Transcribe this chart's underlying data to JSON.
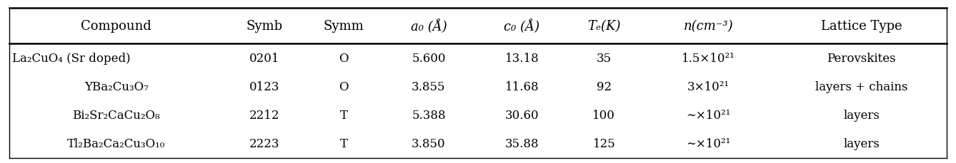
{
  "headers": [
    "Compound",
    "Symb",
    "Symm",
    "a₀ (Å)",
    "c₀ (Å)",
    "Tₑ(K)",
    "n(cm⁻³)",
    "Lattice Type"
  ],
  "header_italic": [
    false,
    false,
    false,
    true,
    true,
    true,
    true,
    false
  ],
  "rows": [
    [
      "La₂CuO₄ (Sr doped)",
      "0201",
      "O",
      "5.600",
      "13.18",
      "35",
      "1.5×10²¹",
      "Perovskites"
    ],
    [
      "YBa₂Cu₃O₇",
      "0123",
      "O",
      "3.855",
      "11.68",
      "92",
      "3×10²¹",
      "layers + chains"
    ],
    [
      "Bi₂Sr₂CaCu₂O₈",
      "2212",
      "T",
      "5.388",
      "30.60",
      "100",
      "∼×10²¹",
      "layers"
    ],
    [
      "Tl₂Ba₂Ca₂Cu₃O₁₀",
      "2223",
      "T",
      "3.850",
      "35.88",
      "125",
      "∼×10²¹",
      "layers"
    ]
  ],
  "bg_color": "#ffffff",
  "border_color": "#000000",
  "header_fontsize": 13,
  "cell_fontsize": 12
}
